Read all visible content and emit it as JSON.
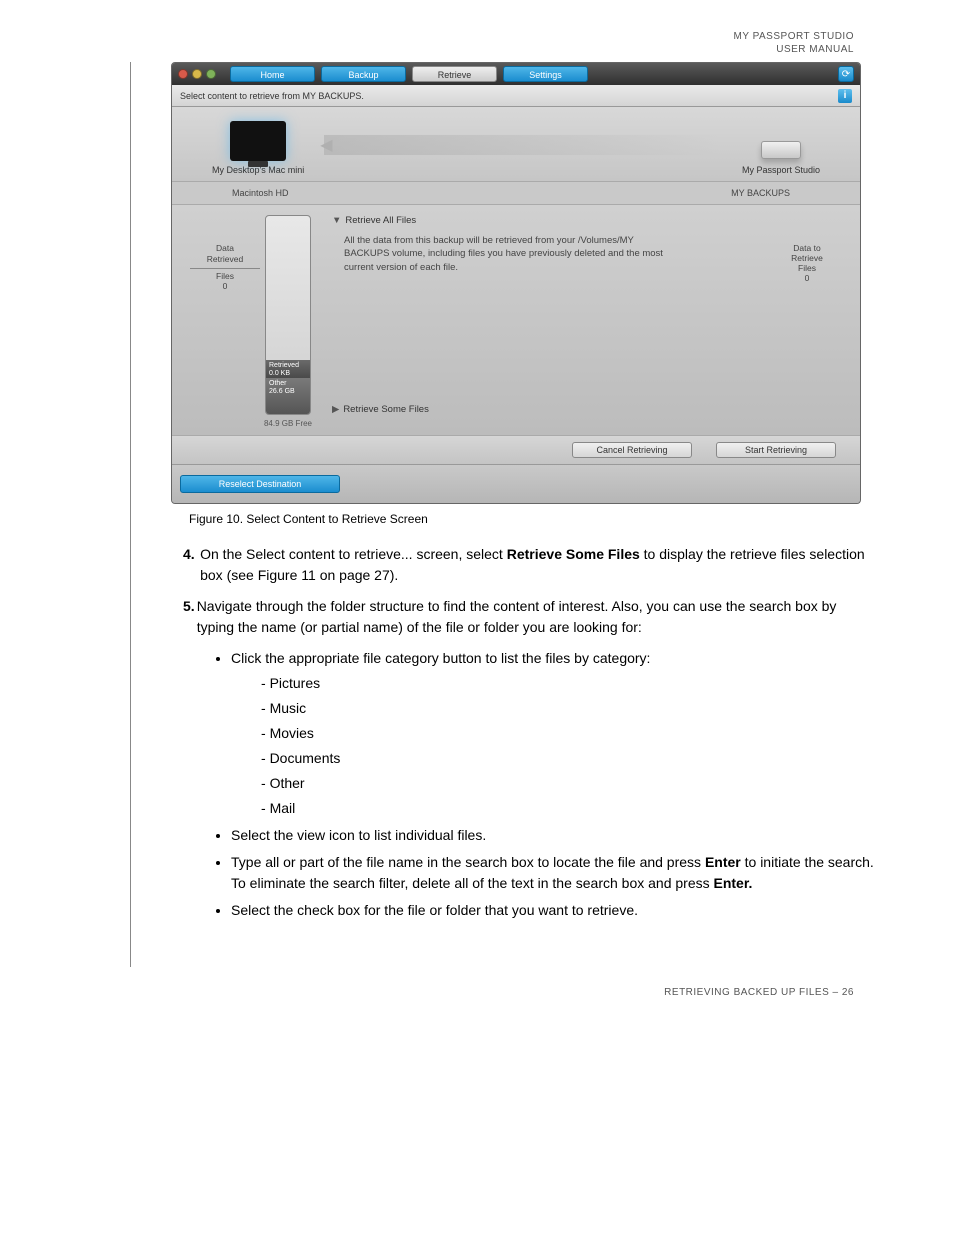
{
  "header": {
    "line1": "MY PASSPORT STUDIO",
    "line2": "USER MANUAL"
  },
  "window": {
    "tabs": {
      "home": "Home",
      "backup": "Backup",
      "retrieve": "Retrieve",
      "settings": "Settings"
    },
    "instruction": "Select content to retrieve from MY BACKUPS.",
    "deviceLeft": "My Desktop's Mac mini",
    "deviceRight": "My Passport Studio",
    "volumeLeft": "Macintosh HD",
    "volumeRight": "MY BACKUPS",
    "leftStats": {
      "title1": "Data",
      "title2": "Retrieved",
      "filesLabel": "Files",
      "filesCount": "0"
    },
    "rightStats": {
      "title1": "Data to",
      "title2": "Retrieve",
      "filesLabel": "Files",
      "filesCount": "0"
    },
    "gauge": {
      "retrievedLabel": "Retrieved",
      "retrievedSize": "0.0 KB",
      "otherLabel": "Other",
      "otherSize": "26.6 GB",
      "free": "84.9 GB  Free"
    },
    "treeAll": "Retrieve All Files",
    "treeSome": "Retrieve Some Files",
    "description": "All the data from this backup will be retrieved from your /Volumes/MY BACKUPS volume, including files you have previously deleted and the most current version of each file.",
    "cancelBtn": "Cancel Retrieving",
    "startBtn": "Start Retrieving",
    "reselectBtn": "Reselect Destination"
  },
  "caption": "Figure 10.  Select Content to Retrieve Screen",
  "step4": {
    "num": "4.",
    "textA": "On the Select content to retrieve... screen, select ",
    "bold": "Retrieve Some Files",
    "textB": " to display the retrieve files selection box (see Figure 11 on page 27)."
  },
  "step5": {
    "num": "5.",
    "text": "Navigate through the folder structure to find the content of interest. Also, you can use the search box by typing the name (or partial name) of the file or folder you are looking for:"
  },
  "bullets": {
    "b1": "Click the appropriate file category button to list the files by category:",
    "dash": [
      "Pictures",
      "Music",
      "Movies",
      "Documents",
      "Other",
      "Mail"
    ],
    "b2": "Select the view icon to list individual files.",
    "b3a": "Type all or part of the file name in the search box to locate the file and press ",
    "b3bold1": "Enter",
    "b3b": " to initiate the search. To eliminate the search filter, delete all of the text in the search box and press ",
    "b3bold2": "Enter.",
    "b4": "Select the check box for the file or folder that you want to retrieve."
  },
  "footer": "RETRIEVING BACKED UP FILES – 26"
}
